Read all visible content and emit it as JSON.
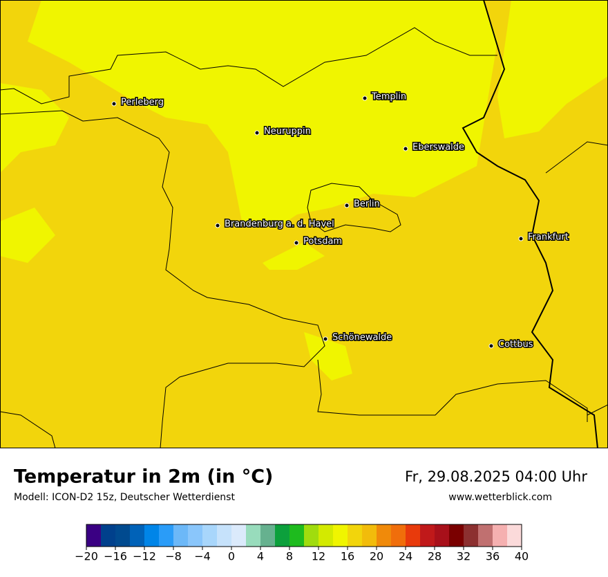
{
  "map": {
    "cities": [
      "Perleberg",
      "Templin",
      "Neuruppin",
      "Eberswalde",
      "Berlin",
      "Brandenburg a. d. Havel",
      "Potsdam",
      "Frankfurt",
      "Schönewalde",
      "Cottbus"
    ]
  },
  "footer": {
    "title": "Temperatur in 2m (in °C)",
    "subtitle": "Modell: ICON-D2 15z, Deutscher Wetterdienst",
    "datetime": "Fr, 29.08.2025 04:00 Uhr",
    "website": "www.wetterblick.com"
  },
  "legend": {
    "range": [
      -20,
      40
    ],
    "colors": [
      "#3a0083",
      "#00408c",
      "#004a8f",
      "#0062b8",
      "#0085e8",
      "#2a9cf8",
      "#6cb8f8",
      "#8ac6fb",
      "#a8d6fb",
      "#c6e2fb",
      "#dbeafb",
      "#98dcbc",
      "#66b18f",
      "#0ca03c",
      "#1ebb1e",
      "#a0dc0e",
      "#d3ea00",
      "#f0f500",
      "#f2d50c",
      "#f2bc0b",
      "#f08a0a",
      "#f06e0b",
      "#e83a0c",
      "#c0191a",
      "#a8101a",
      "#7a0000",
      "#8c3030",
      "#c07070",
      "#f5b0b0",
      "#fbdada"
    ],
    "ticks": [
      {
        "value": -20,
        "label": "−20"
      },
      {
        "value": -16,
        "label": "−16"
      },
      {
        "value": -12,
        "label": "−12"
      },
      {
        "value": -8,
        "label": "−8"
      },
      {
        "value": -4,
        "label": "−4"
      },
      0,
      4,
      8,
      12,
      16,
      20,
      24,
      28,
      32,
      36,
      40
    ]
  }
}
